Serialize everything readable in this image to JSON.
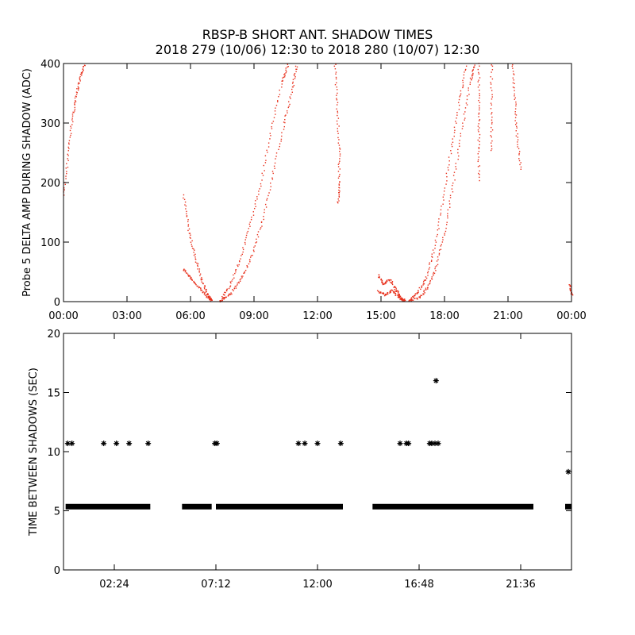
{
  "title": "RBSP-B SHORT ANT. SHADOW TIMES",
  "subtitle": "2018 279 (10/06) 12:30 to 2018 280 (10/07) 12:30",
  "colors": {
    "top_points": "#e8321e",
    "bottom_points": "#000000",
    "axes": "#000000"
  },
  "chart_data": [
    {
      "type": "scatter",
      "ylabel": "Probe 5 DELTA AMP DURING SHADOW (ADC)",
      "xlabel": "",
      "x_unit": "hours",
      "xlim": [
        0,
        24
      ],
      "ylim": [
        0,
        400
      ],
      "x_ticks": [
        0,
        3,
        6,
        9,
        12,
        15,
        18,
        21,
        24
      ],
      "x_tick_labels": [
        "00:00",
        "03:00",
        "06:00",
        "09:00",
        "12:00",
        "15:00",
        "18:00",
        "21:00",
        "00:00"
      ],
      "y_ticks": [
        0,
        100,
        200,
        300,
        400
      ],
      "y_tick_labels": [
        "0",
        "100",
        "200",
        "300",
        "400"
      ],
      "grid": false,
      "marker": "dot",
      "series": [
        {
          "segments": [
            [
              [
                0.0,
                180
              ],
              [
                0.2,
                250
              ],
              [
                0.4,
                310
              ],
              [
                0.6,
                350
              ],
              [
                0.8,
                380
              ],
              [
                1.0,
                400
              ]
            ],
            [
              [
                5.65,
                180
              ],
              [
                5.9,
                120
              ],
              [
                6.2,
                75
              ],
              [
                6.5,
                38
              ],
              [
                6.8,
                12
              ],
              [
                7.0,
                2
              ]
            ],
            [
              [
                5.65,
                55
              ],
              [
                6.0,
                40
              ],
              [
                6.4,
                24
              ],
              [
                6.8,
                8
              ],
              [
                7.0,
                2
              ]
            ],
            [
              [
                7.4,
                2
              ],
              [
                7.8,
                25
              ],
              [
                8.3,
                70
              ],
              [
                8.8,
                130
              ],
              [
                9.3,
                200
              ],
              [
                9.8,
                290
              ],
              [
                10.3,
                370
              ],
              [
                10.6,
                400
              ]
            ],
            [
              [
                7.4,
                2
              ],
              [
                7.9,
                15
              ],
              [
                8.4,
                40
              ],
              [
                8.9,
                80
              ],
              [
                9.4,
                140
              ],
              [
                9.9,
                220
              ],
              [
                10.4,
                300
              ],
              [
                10.8,
                360
              ],
              [
                11.0,
                400
              ]
            ],
            [
              [
                12.8,
                400
              ],
              [
                12.9,
                330
              ],
              [
                13.0,
                260
              ],
              [
                13.0,
                200
              ],
              [
                12.95,
                165
              ]
            ],
            [
              [
                14.85,
                45
              ],
              [
                15.1,
                30
              ],
              [
                15.4,
                38
              ],
              [
                15.7,
                20
              ],
              [
                15.9,
                8
              ],
              [
                16.1,
                2
              ]
            ],
            [
              [
                14.85,
                18
              ],
              [
                15.2,
                12
              ],
              [
                15.5,
                20
              ],
              [
                15.8,
                8
              ],
              [
                16.1,
                2
              ]
            ],
            [
              [
                16.3,
                2
              ],
              [
                16.7,
                15
              ],
              [
                17.1,
                40
              ],
              [
                17.5,
                90
              ],
              [
                17.9,
                170
              ],
              [
                18.3,
                260
              ],
              [
                18.7,
                340
              ],
              [
                19.0,
                400
              ]
            ],
            [
              [
                16.3,
                2
              ],
              [
                16.8,
                8
              ],
              [
                17.2,
                25
              ],
              [
                17.6,
                60
              ],
              [
                18.0,
                120
              ],
              [
                18.4,
                200
              ],
              [
                18.8,
                290
              ],
              [
                19.2,
                370
              ],
              [
                19.4,
                400
              ]
            ],
            [
              [
                19.6,
                400
              ],
              [
                19.6,
                330
              ],
              [
                19.6,
                270
              ],
              [
                19.6,
                200
              ]
            ],
            [
              [
                20.2,
                400
              ],
              [
                20.2,
                320
              ],
              [
                20.2,
                250
              ]
            ],
            [
              [
                21.2,
                400
              ],
              [
                21.3,
                340
              ],
              [
                21.4,
                280
              ],
              [
                21.6,
                220
              ]
            ],
            [
              [
                23.9,
                30
              ],
              [
                24.0,
                10
              ]
            ]
          ]
        }
      ]
    },
    {
      "type": "scatter",
      "ylabel": "TIME BETWEEN SHADOWS (SEC)",
      "xlabel": "",
      "x_unit": "hours",
      "xlim": [
        0,
        24
      ],
      "ylim": [
        0,
        20
      ],
      "x_ticks": [
        2.4,
        7.2,
        12.0,
        16.8,
        21.6
      ],
      "x_tick_labels": [
        "02:24",
        "07:12",
        "12:00",
        "16:48",
        "21:36"
      ],
      "y_ticks": [
        0,
        5,
        10,
        15,
        20
      ],
      "y_tick_labels": [
        "0",
        "5",
        "10",
        "15",
        "20"
      ],
      "grid": false,
      "marker": "asterisk",
      "series": [
        {
          "bands": [
            {
              "start": 0.1,
              "end": 4.1,
              "y": 5.35
            },
            {
              "start": 5.6,
              "end": 7.0,
              "y": 5.35
            },
            {
              "start": 7.2,
              "end": 13.2,
              "y": 5.35
            },
            {
              "start": 14.6,
              "end": 22.2,
              "y": 5.35
            },
            {
              "start": 23.7,
              "end": 24.0,
              "y": 5.35
            }
          ],
          "points": [
            [
              0.2,
              10.7
            ],
            [
              0.4,
              10.7
            ],
            [
              1.9,
              10.7
            ],
            [
              2.5,
              10.7
            ],
            [
              3.1,
              10.7
            ],
            [
              4.0,
              10.7
            ],
            [
              7.15,
              10.7
            ],
            [
              7.25,
              10.7
            ],
            [
              11.1,
              10.7
            ],
            [
              11.4,
              10.7
            ],
            [
              12.0,
              10.7
            ],
            [
              13.1,
              10.7
            ],
            [
              15.9,
              10.7
            ],
            [
              16.2,
              10.7
            ],
            [
              16.3,
              10.7
            ],
            [
              17.3,
              10.7
            ],
            [
              17.4,
              10.7
            ],
            [
              17.6,
              16.0
            ],
            [
              17.7,
              10.7
            ],
            [
              17.55,
              10.7
            ],
            [
              23.85,
              8.3
            ]
          ]
        }
      ]
    }
  ]
}
